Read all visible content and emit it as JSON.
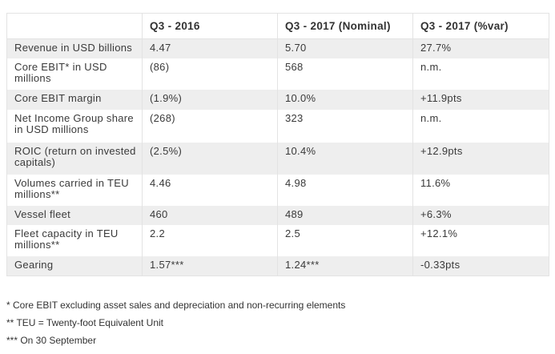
{
  "table": {
    "headers": [
      "",
      "Q3 - 2016",
      "Q3 - 2017 (Nominal)",
      "Q3 - 2017 (%var)"
    ],
    "rows": [
      [
        "Revenue in USD billions",
        "4.47",
        "5.70",
        "27.7%"
      ],
      [
        "Core EBIT* in USD millions",
        "(86)",
        "568",
        "n.m."
      ],
      [
        "Core EBIT margin",
        "(1.9%)",
        "10.0%",
        "+11.9pts"
      ],
      [
        "Net Income Group share in USD millions",
        "(268)",
        "323",
        "n.m."
      ],
      [
        "ROIC (return on invested capitals)",
        "(2.5%)",
        "10.4%",
        "+12.9pts"
      ],
      [
        "Volumes carried in TEU millions**",
        "4.46",
        "4.98",
        "11.6%"
      ],
      [
        "Vessel fleet",
        "460",
        "489",
        "+6.3%"
      ],
      [
        "Fleet capacity in TEU millions**",
        "2.2",
        "2.5",
        "+12.1%"
      ],
      [
        "Gearing",
        "1.57***",
        "1.24***",
        "-0.33pts"
      ]
    ]
  },
  "footnotes": [
    "* Core EBIT excluding asset sales and depreciation and non-recurring elements",
    "** TEU = Twenty-foot Equivalent Unit",
    "*** On 30 September"
  ]
}
